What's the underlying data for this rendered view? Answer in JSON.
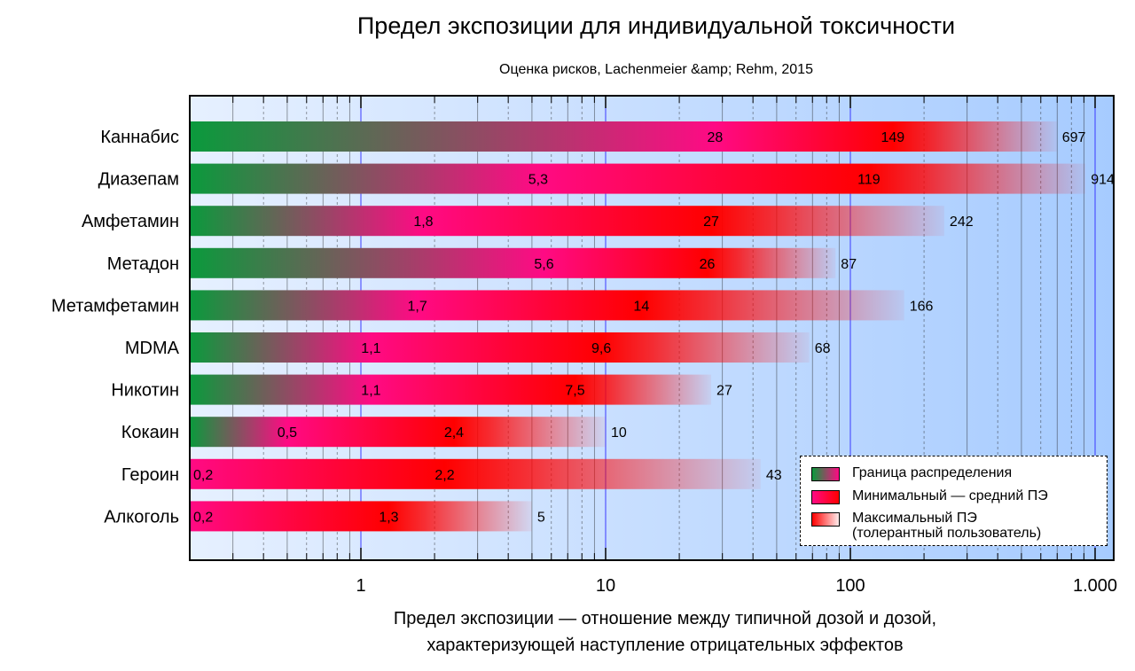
{
  "chart_data": {
    "type": "bar",
    "orientation": "horizontal",
    "x_scale": "log",
    "title": "Предел экспозиции для индивидуальной токсичности",
    "subtitle": "Оценка рисков, Lachenmeier &amp; Rehm, 2015",
    "xlabel": "Предел экспозиции — отношение между типичной дозой и дозой, характеризующей наступление отрицательных эффектов",
    "xlabel_lines": [
      "Предел экспозиции — отношение между типичной дозой и дозой,",
      "характеризующей наступление отрицательных эффектов"
    ],
    "xlim": [
      0.16,
      1200
    ],
    "xticks": [
      {
        "value": 1,
        "label": "1"
      },
      {
        "value": 10,
        "label": "10"
      },
      {
        "value": 100,
        "label": "100"
      },
      {
        "value": 1000,
        "label": "1.000"
      }
    ],
    "categories": [
      "Каннабис",
      "Диазепам",
      "Амфетамин",
      "Метадон",
      "Метамфетамин",
      "MDMA",
      "Никотин",
      "Кокаин",
      "Героин",
      "Алкоголь"
    ],
    "series": [
      {
        "name": "Граница распределения",
        "values": [
          28,
          5.3,
          1.8,
          5.6,
          1.7,
          1.1,
          1.1,
          0.5,
          0.2,
          0.2
        ],
        "labels": [
          "28",
          "5,3",
          "1,8",
          "5,6",
          "1,7",
          "1,1",
          "1,1",
          "0,5",
          "0,2",
          "0,2"
        ]
      },
      {
        "name": "Минимальный — средний ПЭ",
        "values": [
          149,
          119,
          27,
          26,
          14,
          9.6,
          7.5,
          2.4,
          2.2,
          1.3
        ],
        "labels": [
          "149",
          "119",
          "27",
          "26",
          "14",
          "9,6",
          "7,5",
          "2,4",
          "2,2",
          "1,3"
        ]
      },
      {
        "name": "Максимальный ПЭ (толерантный пользователь)",
        "values": [
          697,
          914,
          242,
          87,
          166,
          68,
          27,
          10,
          43,
          5
        ],
        "labels": [
          "697",
          "914",
          "242",
          "87",
          "166",
          "68",
          "27",
          "10",
          "43",
          "5"
        ]
      }
    ],
    "legend": {
      "position": "bottom-right",
      "items": [
        {
          "label": "Граница распределения"
        },
        {
          "label": "Минимальный — средний ПЭ"
        },
        {
          "label": "Максимальный ПЭ",
          "label2": "(толерантный пользователь)"
        }
      ]
    }
  },
  "colors": {
    "green": "#0a9a3c",
    "magenta": "#ff0a84",
    "red": "#ff0000",
    "plot_bg_light": "#e6f0ff",
    "plot_bg_dark": "#a6cbff",
    "major_grid": "#3a3aff"
  }
}
